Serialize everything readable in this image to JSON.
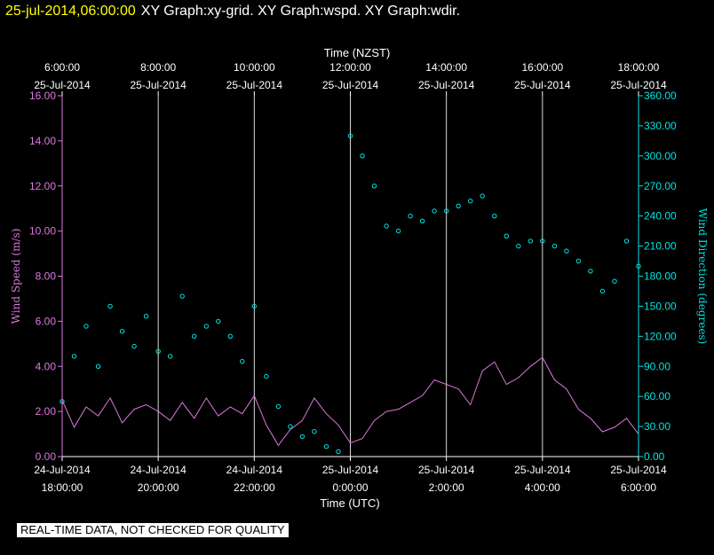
{
  "header": {
    "timestamp": "25-jul-2014,06:00:00",
    "graphs": "XY Graph:xy-grid.  XY Graph:wspd.  XY Graph:wdir."
  },
  "footer": {
    "note": "REAL-TIME DATA, NOT CHECKED FOR QUALITY"
  },
  "colors": {
    "background": "#000000",
    "speed": "#dd77dd",
    "direction": "#00e5e5",
    "grid": "#ffffff",
    "stamp": "#ffff00"
  },
  "chart_data": {
    "type": "line",
    "top_axis": {
      "label": "Time (NZST)",
      "ticks": [
        {
          "time": "6:00:00",
          "date": "25-Jul-2014"
        },
        {
          "time": "8:00:00",
          "date": "25-Jul-2014"
        },
        {
          "time": "10:00:00",
          "date": "25-Jul-2014"
        },
        {
          "time": "12:00:00",
          "date": "25-Jul-2014"
        },
        {
          "time": "14:00:00",
          "date": "25-Jul-2014"
        },
        {
          "time": "16:00:00",
          "date": "25-Jul-2014"
        },
        {
          "time": "18:00:00",
          "date": "25-Jul-2014"
        }
      ]
    },
    "bottom_axis": {
      "label": "Time (UTC)",
      "ticks": [
        {
          "date": "24-Jul-2014",
          "time": "18:00:00"
        },
        {
          "date": "24-Jul-2014",
          "time": "20:00:00"
        },
        {
          "date": "24-Jul-2014",
          "time": "22:00:00"
        },
        {
          "date": "25-Jul-2014",
          "time": "0:00:00"
        },
        {
          "date": "25-Jul-2014",
          "time": "2:00:00"
        },
        {
          "date": "25-Jul-2014",
          "time": "4:00:00"
        },
        {
          "date": "25-Jul-2014",
          "time": "6:00:00"
        }
      ],
      "x_range_hours": [
        0,
        12
      ]
    },
    "left_axis": {
      "label": "Wind Speed (m/s)",
      "range": [
        0,
        16
      ],
      "ticks": [
        "0.00",
        "2.00",
        "4.00",
        "6.00",
        "8.00",
        "10.00",
        "12.00",
        "14.00",
        "16.00"
      ]
    },
    "right_axis": {
      "label": "Wind Direction (degrees)",
      "range": [
        0,
        360
      ],
      "ticks": [
        "0.00",
        "30.00",
        "60.00",
        "90.00",
        "120.00",
        "150.00",
        "180.00",
        "210.00",
        "240.00",
        "270.00",
        "300.00",
        "330.00",
        "360.00"
      ]
    },
    "grid": "vertical",
    "series": [
      {
        "name": "wspd",
        "style": "line",
        "x_hours": [
          0,
          0.25,
          0.5,
          0.75,
          1,
          1.25,
          1.5,
          1.75,
          2,
          2.25,
          2.5,
          2.75,
          3,
          3.25,
          3.5,
          3.75,
          4,
          4.25,
          4.5,
          4.75,
          5,
          5.25,
          5.5,
          5.75,
          6,
          6.25,
          6.5,
          6.75,
          7,
          7.25,
          7.5,
          7.75,
          8,
          8.25,
          8.5,
          8.75,
          9,
          9.25,
          9.5,
          9.75,
          10,
          10.25,
          10.5,
          10.75,
          11,
          11.25,
          11.5,
          11.75,
          12
        ],
        "values": [
          2.5,
          1.3,
          2.2,
          1.8,
          2.6,
          1.5,
          2.1,
          2.3,
          2.0,
          1.6,
          2.4,
          1.7,
          2.6,
          1.8,
          2.2,
          1.9,
          2.7,
          1.4,
          0.5,
          1.2,
          1.6,
          2.6,
          1.9,
          1.4,
          0.6,
          0.8,
          1.6,
          2.0,
          2.1,
          2.4,
          2.7,
          3.4,
          3.2,
          3.0,
          2.3,
          3.8,
          4.2,
          3.2,
          3.5,
          4.0,
          4.4,
          3.4,
          3.0,
          2.1,
          1.7,
          1.1,
          1.3,
          1.7,
          1.0
        ]
      },
      {
        "name": "wdir",
        "style": "markers",
        "x_hours": [
          0,
          0.25,
          0.5,
          0.75,
          1,
          1.25,
          1.5,
          1.75,
          2,
          2.25,
          2.5,
          2.75,
          3,
          3.25,
          3.5,
          3.75,
          4,
          4.25,
          4.5,
          4.75,
          5,
          5.25,
          5.5,
          5.75,
          6,
          6.25,
          6.5,
          6.75,
          7,
          7.25,
          7.5,
          7.75,
          8,
          8.25,
          8.5,
          8.75,
          9,
          9.25,
          9.5,
          9.75,
          10,
          10.25,
          10.5,
          10.75,
          11,
          11.25,
          11.5,
          11.75,
          12
        ],
        "values": [
          55,
          100,
          130,
          90,
          150,
          125,
          110,
          140,
          105,
          100,
          160,
          120,
          130,
          135,
          120,
          95,
          150,
          80,
          50,
          30,
          20,
          25,
          10,
          5,
          320,
          300,
          270,
          230,
          225,
          240,
          235,
          245,
          245,
          250,
          255,
          260,
          240,
          220,
          210,
          215,
          215,
          210,
          205,
          195,
          185,
          165,
          175,
          215,
          190
        ]
      }
    ]
  }
}
